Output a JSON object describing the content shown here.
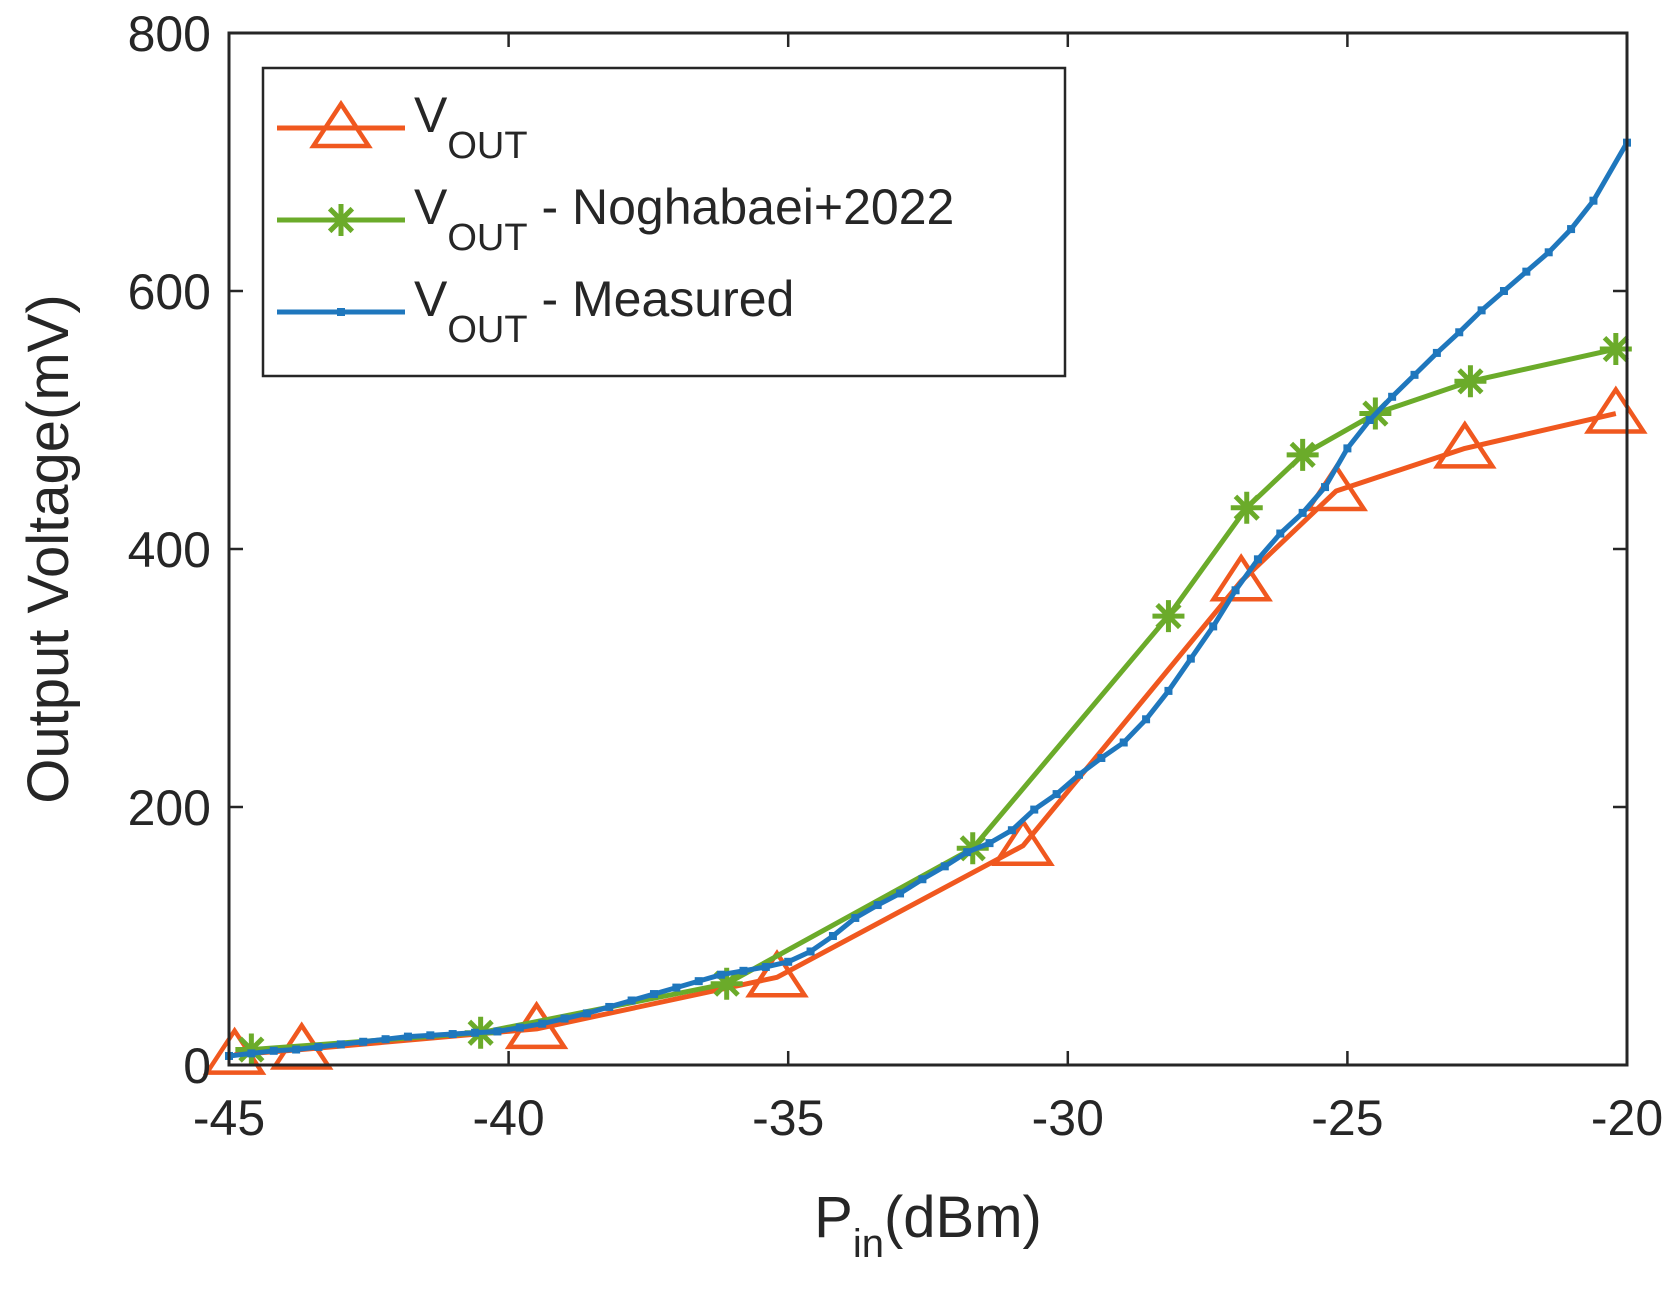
{
  "chart_data": {
    "type": "line",
    "title": "",
    "xlabel": {
      "main": "P",
      "sub": "in",
      "suffix": "(dBm)"
    },
    "ylabel": "Output Voltage(mV)",
    "xlim": [
      -45,
      -20
    ],
    "ylim": [
      0,
      800
    ],
    "xticks": [
      -45,
      -40,
      -35,
      -30,
      -25,
      -20
    ],
    "yticks": [
      0,
      200,
      400,
      600,
      800
    ],
    "xtick_labels": [
      "-45",
      "-40",
      "-35",
      "-30",
      "-25",
      "-20"
    ],
    "ytick_labels": [
      "0",
      "200",
      "400",
      "600",
      "800"
    ],
    "grid": false,
    "legend_position": "top-left",
    "series": [
      {
        "name": "V_OUT",
        "label_main": "V",
        "label_sub": "OUT",
        "label_suffix": "",
        "color": "#F0581F",
        "marker": "triangle",
        "x": [
          -44.9,
          -43.7,
          -39.5,
          -35.2,
          -30.8,
          -26.9,
          -25.2,
          -22.9,
          -20.2
        ],
        "y": [
          8,
          12,
          28,
          68,
          170,
          375,
          445,
          478,
          505
        ]
      },
      {
        "name": "V_OUT - Noghabaei+2022",
        "label_main": "V",
        "label_sub": "OUT",
        "label_suffix": " - Noghabaei+2022",
        "color": "#6BAB2A",
        "marker": "asterisk",
        "x": [
          -44.6,
          -40.5,
          -36.1,
          -31.7,
          -28.2,
          -26.8,
          -25.8,
          -24.5,
          -22.8,
          -20.2
        ],
        "y": [
          12,
          25,
          63,
          168,
          348,
          432,
          473,
          505,
          530,
          555
        ]
      },
      {
        "name": "V_OUT - Measured",
        "label_main": "V",
        "label_sub": "OUT",
        "label_suffix": " - Measured",
        "color": "#1F77BD",
        "marker": "dot",
        "x": [
          -45,
          -44.6,
          -44.2,
          -43.8,
          -43.4,
          -43,
          -42.6,
          -42.2,
          -41.8,
          -41.4,
          -41,
          -40.6,
          -40.2,
          -39.8,
          -39.4,
          -39,
          -38.6,
          -38.2,
          -37.8,
          -37.4,
          -37,
          -36.6,
          -36.2,
          -35.8,
          -35.4,
          -35,
          -34.6,
          -34.2,
          -33.8,
          -33.4,
          -33,
          -32.6,
          -32.2,
          -31.8,
          -31.4,
          -31,
          -30.6,
          -30.2,
          -29.8,
          -29.4,
          -29,
          -28.6,
          -28.2,
          -27.8,
          -27.4,
          -27,
          -26.6,
          -26.2,
          -25.8,
          -25.4,
          -25,
          -24.6,
          -24.2,
          -23.8,
          -23.4,
          -23,
          -22.6,
          -22.2,
          -21.8,
          -21.4,
          -21,
          -20.6,
          -20
        ],
        "y": [
          7,
          9,
          11,
          12,
          14,
          16,
          18,
          20,
          22,
          23,
          24,
          25,
          26,
          29,
          32,
          36,
          40,
          45,
          50,
          55,
          60,
          65,
          70,
          73,
          76,
          80,
          88,
          100,
          114,
          124,
          133,
          144,
          154,
          165,
          172,
          182,
          198,
          210,
          225,
          238,
          250,
          268,
          290,
          315,
          340,
          368,
          392,
          412,
          428,
          448,
          478,
          500,
          518,
          535,
          552,
          568,
          585,
          600,
          615,
          630,
          648,
          670,
          715
        ]
      }
    ]
  }
}
